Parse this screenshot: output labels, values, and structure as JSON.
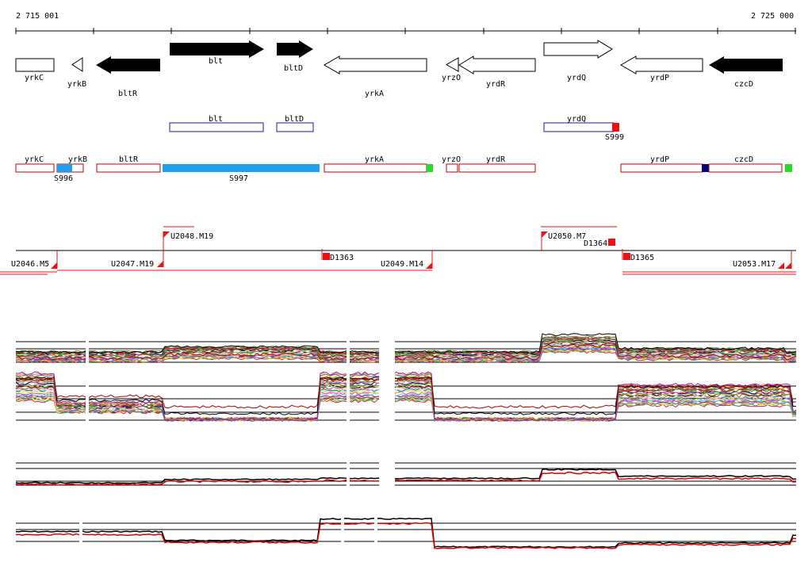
{
  "ruler": {
    "start_label": "2 715 001",
    "end_label": "2 725 000"
  },
  "colors": {
    "filled_gene": "#000000",
    "outline_gene": "#000000",
    "annotation_box": "#1a1aa8",
    "promoter_box": "#c00000",
    "sigma_blue": "#1aa0ee",
    "terminator_green": "#22dd22",
    "marker_red": "#ee1111",
    "navy": "#000080"
  },
  "genes": [
    {
      "name": "yrkC",
      "filled": false,
      "strand": "none"
    },
    {
      "name": "yrkB",
      "filled": false,
      "strand": "-"
    },
    {
      "name": "bltR",
      "filled": true,
      "strand": "-"
    },
    {
      "name": "blt",
      "filled": true,
      "strand": "+"
    },
    {
      "name": "bltD",
      "filled": true,
      "strand": "+"
    },
    {
      "name": "yrkA",
      "filled": false,
      "strand": "-"
    },
    {
      "name": "yrzO",
      "filled": false,
      "strand": "-"
    },
    {
      "name": "yrdR",
      "filled": false,
      "strand": "-"
    },
    {
      "name": "yrdQ",
      "filled": false,
      "strand": "+"
    },
    {
      "name": "yrdP",
      "filled": false,
      "strand": "-"
    },
    {
      "name": "czcD",
      "filled": true,
      "strand": "-"
    }
  ],
  "annotations": [
    {
      "name": "blt"
    },
    {
      "name": "bltD"
    },
    {
      "name": "yrdQ",
      "marker": "S999"
    }
  ],
  "promoter_row": [
    {
      "name": "yrkC"
    },
    {
      "name": "yrkB"
    },
    {
      "name": "bltR"
    },
    {
      "name": "yrkA"
    },
    {
      "name": "yrzO"
    },
    {
      "name": "yrdR"
    },
    {
      "name": "yrdP"
    },
    {
      "name": "czcD"
    }
  ],
  "sigma_labels": [
    "S996",
    "S997"
  ],
  "segments": {
    "up": [
      "U2048.M19",
      "U2050.M7"
    ],
    "down": [
      "U2046.M5",
      "U2047.M19",
      "U2049.M14",
      "U2053.M17"
    ],
    "downshift": [
      "D1363",
      "D1364",
      "D1365"
    ]
  }
}
